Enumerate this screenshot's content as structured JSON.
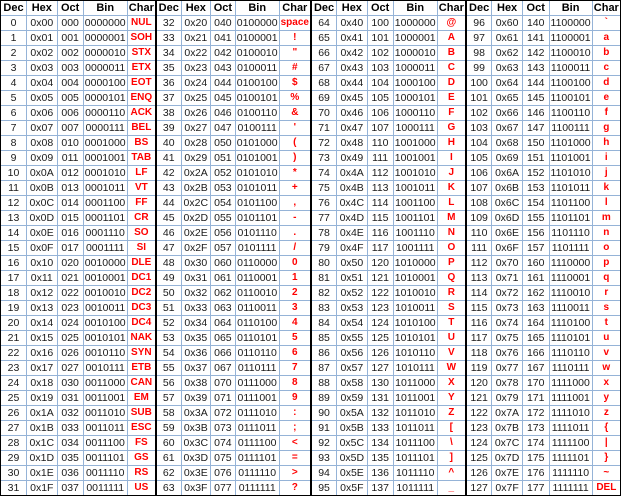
{
  "colors": {
    "char_text": "#FF0000",
    "data_text": "#1A1A1A",
    "grid_line": "#95B3D7",
    "group_border": "#000000"
  },
  "table": {
    "headers": [
      "Dec",
      "Hex",
      "Oct",
      "Bin",
      "Char"
    ],
    "column_widths_pct": [
      16.8,
      20.0,
      17.4,
      27.7,
      18.1
    ],
    "groups": [
      {
        "rows": [
          [
            "0",
            "0x00",
            "000",
            "0000000",
            "NUL"
          ],
          [
            "1",
            "0x01",
            "001",
            "0000001",
            "SOH"
          ],
          [
            "2",
            "0x02",
            "002",
            "0000010",
            "STX"
          ],
          [
            "3",
            "0x03",
            "003",
            "0000011",
            "ETX"
          ],
          [
            "4",
            "0x04",
            "004",
            "0000100",
            "EOT"
          ],
          [
            "5",
            "0x05",
            "005",
            "0000101",
            "ENQ"
          ],
          [
            "6",
            "0x06",
            "006",
            "0000110",
            "ACK"
          ],
          [
            "7",
            "0x07",
            "007",
            "0000111",
            "BEL"
          ],
          [
            "8",
            "0x08",
            "010",
            "0001000",
            "BS"
          ],
          [
            "9",
            "0x09",
            "011",
            "0001001",
            "TAB"
          ],
          [
            "10",
            "0x0A",
            "012",
            "0001010",
            "LF"
          ],
          [
            "11",
            "0x0B",
            "013",
            "0001011",
            "VT"
          ],
          [
            "12",
            "0x0C",
            "014",
            "0001100",
            "FF"
          ],
          [
            "13",
            "0x0D",
            "015",
            "0001101",
            "CR"
          ],
          [
            "14",
            "0x0E",
            "016",
            "0001110",
            "SO"
          ],
          [
            "15",
            "0x0F",
            "017",
            "0001111",
            "SI"
          ],
          [
            "16",
            "0x10",
            "020",
            "0010000",
            "DLE"
          ],
          [
            "17",
            "0x11",
            "021",
            "0010001",
            "DC1"
          ],
          [
            "18",
            "0x12",
            "022",
            "0010010",
            "DC2"
          ],
          [
            "19",
            "0x13",
            "023",
            "0010011",
            "DC3"
          ],
          [
            "20",
            "0x14",
            "024",
            "0010100",
            "DC4"
          ],
          [
            "21",
            "0x15",
            "025",
            "0010101",
            "NAK"
          ],
          [
            "22",
            "0x16",
            "026",
            "0010110",
            "SYN"
          ],
          [
            "23",
            "0x17",
            "027",
            "0010111",
            "ETB"
          ],
          [
            "24",
            "0x18",
            "030",
            "0011000",
            "CAN"
          ],
          [
            "25",
            "0x19",
            "031",
            "0011001",
            "EM"
          ],
          [
            "26",
            "0x1A",
            "032",
            "0011010",
            "SUB"
          ],
          [
            "27",
            "0x1B",
            "033",
            "0011011",
            "ESC"
          ],
          [
            "28",
            "0x1C",
            "034",
            "0011100",
            "FS"
          ],
          [
            "29",
            "0x1D",
            "035",
            "0011101",
            "GS"
          ],
          [
            "30",
            "0x1E",
            "036",
            "0011110",
            "RS"
          ],
          [
            "31",
            "0x1F",
            "037",
            "0011111",
            "US"
          ]
        ]
      },
      {
        "rows": [
          [
            "32",
            "0x20",
            "040",
            "0100000",
            "space"
          ],
          [
            "33",
            "0x21",
            "041",
            "0100001",
            "!"
          ],
          [
            "34",
            "0x22",
            "042",
            "0100010",
            "\""
          ],
          [
            "35",
            "0x23",
            "043",
            "0100011",
            "#"
          ],
          [
            "36",
            "0x24",
            "044",
            "0100100",
            "$"
          ],
          [
            "37",
            "0x25",
            "045",
            "0100101",
            "%"
          ],
          [
            "38",
            "0x26",
            "046",
            "0100110",
            "&"
          ],
          [
            "39",
            "0x27",
            "047",
            "0100111",
            "'"
          ],
          [
            "40",
            "0x28",
            "050",
            "0101000",
            "("
          ],
          [
            "41",
            "0x29",
            "051",
            "0101001",
            ")"
          ],
          [
            "42",
            "0x2A",
            "052",
            "0101010",
            "*"
          ],
          [
            "43",
            "0x2B",
            "053",
            "0101011",
            "+"
          ],
          [
            "44",
            "0x2C",
            "054",
            "0101100",
            ","
          ],
          [
            "45",
            "0x2D",
            "055",
            "0101101",
            "-"
          ],
          [
            "46",
            "0x2E",
            "056",
            "0101110",
            "."
          ],
          [
            "47",
            "0x2F",
            "057",
            "0101111",
            "/"
          ],
          [
            "48",
            "0x30",
            "060",
            "0110000",
            "0"
          ],
          [
            "49",
            "0x31",
            "061",
            "0110001",
            "1"
          ],
          [
            "50",
            "0x32",
            "062",
            "0110010",
            "2"
          ],
          [
            "51",
            "0x33",
            "063",
            "0110011",
            "3"
          ],
          [
            "52",
            "0x34",
            "064",
            "0110100",
            "4"
          ],
          [
            "53",
            "0x35",
            "065",
            "0110101",
            "5"
          ],
          [
            "54",
            "0x36",
            "066",
            "0110110",
            "6"
          ],
          [
            "55",
            "0x37",
            "067",
            "0110111",
            "7"
          ],
          [
            "56",
            "0x38",
            "070",
            "0111000",
            "8"
          ],
          [
            "57",
            "0x39",
            "071",
            "0111001",
            "9"
          ],
          [
            "58",
            "0x3A",
            "072",
            "0111010",
            ":"
          ],
          [
            "59",
            "0x3B",
            "073",
            "0111011",
            ";"
          ],
          [
            "60",
            "0x3C",
            "074",
            "0111100",
            "<"
          ],
          [
            "61",
            "0x3D",
            "075",
            "0111101",
            "="
          ],
          [
            "62",
            "0x3E",
            "076",
            "0111110",
            ">"
          ],
          [
            "63",
            "0x3F",
            "077",
            "0111111",
            "?"
          ]
        ]
      },
      {
        "rows": [
          [
            "64",
            "0x40",
            "100",
            "1000000",
            "@"
          ],
          [
            "65",
            "0x41",
            "101",
            "1000001",
            "A"
          ],
          [
            "66",
            "0x42",
            "102",
            "1000010",
            "B"
          ],
          [
            "67",
            "0x43",
            "103",
            "1000011",
            "C"
          ],
          [
            "68",
            "0x44",
            "104",
            "1000100",
            "D"
          ],
          [
            "69",
            "0x45",
            "105",
            "1000101",
            "E"
          ],
          [
            "70",
            "0x46",
            "106",
            "1000110",
            "F"
          ],
          [
            "71",
            "0x47",
            "107",
            "1000111",
            "G"
          ],
          [
            "72",
            "0x48",
            "110",
            "1001000",
            "H"
          ],
          [
            "73",
            "0x49",
            "111",
            "1001001",
            "I"
          ],
          [
            "74",
            "0x4A",
            "112",
            "1001010",
            "J"
          ],
          [
            "75",
            "0x4B",
            "113",
            "1001011",
            "K"
          ],
          [
            "76",
            "0x4C",
            "114",
            "1001100",
            "L"
          ],
          [
            "77",
            "0x4D",
            "115",
            "1001101",
            "M"
          ],
          [
            "78",
            "0x4E",
            "116",
            "1001110",
            "N"
          ],
          [
            "79",
            "0x4F",
            "117",
            "1001111",
            "O"
          ],
          [
            "80",
            "0x50",
            "120",
            "1010000",
            "P"
          ],
          [
            "81",
            "0x51",
            "121",
            "1010001",
            "Q"
          ],
          [
            "82",
            "0x52",
            "122",
            "1010010",
            "R"
          ],
          [
            "83",
            "0x53",
            "123",
            "1010011",
            "S"
          ],
          [
            "84",
            "0x54",
            "124",
            "1010100",
            "T"
          ],
          [
            "85",
            "0x55",
            "125",
            "1010101",
            "U"
          ],
          [
            "86",
            "0x56",
            "126",
            "1010110",
            "V"
          ],
          [
            "87",
            "0x57",
            "127",
            "1010111",
            "W"
          ],
          [
            "88",
            "0x58",
            "130",
            "1011000",
            "X"
          ],
          [
            "89",
            "0x59",
            "131",
            "1011001",
            "Y"
          ],
          [
            "90",
            "0x5A",
            "132",
            "1011010",
            "Z"
          ],
          [
            "91",
            "0x5B",
            "133",
            "1011011",
            "["
          ],
          [
            "92",
            "0x5C",
            "134",
            "1011100",
            "\\"
          ],
          [
            "93",
            "0x5D",
            "135",
            "1011101",
            "]"
          ],
          [
            "94",
            "0x5E",
            "136",
            "1011110",
            "^"
          ],
          [
            "95",
            "0x5F",
            "137",
            "1011111",
            "_"
          ]
        ]
      },
      {
        "rows": [
          [
            "96",
            "0x60",
            "140",
            "1100000",
            "`"
          ],
          [
            "97",
            "0x61",
            "141",
            "1100001",
            "a"
          ],
          [
            "98",
            "0x62",
            "142",
            "1100010",
            "b"
          ],
          [
            "99",
            "0x63",
            "143",
            "1100011",
            "c"
          ],
          [
            "100",
            "0x64",
            "144",
            "1100100",
            "d"
          ],
          [
            "101",
            "0x65",
            "145",
            "1100101",
            "e"
          ],
          [
            "102",
            "0x66",
            "146",
            "1100110",
            "f"
          ],
          [
            "103",
            "0x67",
            "147",
            "1100111",
            "g"
          ],
          [
            "104",
            "0x68",
            "150",
            "1101000",
            "h"
          ],
          [
            "105",
            "0x69",
            "151",
            "1101001",
            "i"
          ],
          [
            "106",
            "0x6A",
            "152",
            "1101010",
            "j"
          ],
          [
            "107",
            "0x6B",
            "153",
            "1101011",
            "k"
          ],
          [
            "108",
            "0x6C",
            "154",
            "1101100",
            "l"
          ],
          [
            "109",
            "0x6D",
            "155",
            "1101101",
            "m"
          ],
          [
            "110",
            "0x6E",
            "156",
            "1101110",
            "n"
          ],
          [
            "111",
            "0x6F",
            "157",
            "1101111",
            "o"
          ],
          [
            "112",
            "0x70",
            "160",
            "1110000",
            "p"
          ],
          [
            "113",
            "0x71",
            "161",
            "1110001",
            "q"
          ],
          [
            "114",
            "0x72",
            "162",
            "1110010",
            "r"
          ],
          [
            "115",
            "0x73",
            "163",
            "1110011",
            "s"
          ],
          [
            "116",
            "0x74",
            "164",
            "1110100",
            "t"
          ],
          [
            "117",
            "0x75",
            "165",
            "1110101",
            "u"
          ],
          [
            "118",
            "0x76",
            "166",
            "1110110",
            "v"
          ],
          [
            "119",
            "0x77",
            "167",
            "1110111",
            "w"
          ],
          [
            "120",
            "0x78",
            "170",
            "1111000",
            "x"
          ],
          [
            "121",
            "0x79",
            "171",
            "1111001",
            "y"
          ],
          [
            "122",
            "0x7A",
            "172",
            "1111010",
            "z"
          ],
          [
            "123",
            "0x7B",
            "173",
            "1111011",
            "{"
          ],
          [
            "124",
            "0x7C",
            "174",
            "1111100",
            "|"
          ],
          [
            "125",
            "0x7D",
            "175",
            "1111101",
            "}"
          ],
          [
            "126",
            "0x7E",
            "176",
            "1111110",
            "~"
          ],
          [
            "127",
            "0x7F",
            "177",
            "1111111",
            "DEL"
          ]
        ]
      }
    ]
  }
}
